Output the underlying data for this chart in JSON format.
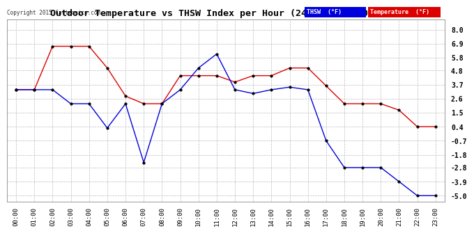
{
  "title": "Outdoor Temperature vs THSW Index per Hour (24 Hours)  20150109",
  "copyright": "Copyright 2015 Cartronics.com",
  "background_color": "#ffffff",
  "plot_bg_color": "#ffffff",
  "grid_color": "#bbbbbb",
  "x_labels": [
    "00:00",
    "01:00",
    "02:00",
    "03:00",
    "04:00",
    "05:00",
    "06:00",
    "07:00",
    "08:00",
    "09:00",
    "10:00",
    "11:00",
    "12:00",
    "13:00",
    "14:00",
    "15:00",
    "16:00",
    "17:00",
    "18:00",
    "19:00",
    "20:00",
    "21:00",
    "22:00",
    "23:00"
  ],
  "y_ticks": [
    8.0,
    6.9,
    5.8,
    4.8,
    3.7,
    2.6,
    1.5,
    0.4,
    -0.7,
    -1.8,
    -2.8,
    -3.9,
    -5.0
  ],
  "thsw_color": "#0000dd",
  "temp_color": "#dd0000",
  "thsw_values": [
    3.3,
    3.3,
    3.3,
    2.2,
    2.2,
    0.3,
    2.2,
    -2.4,
    2.2,
    3.3,
    5.0,
    6.1,
    3.3,
    3.0,
    3.3,
    3.5,
    3.3,
    -0.7,
    -2.8,
    -2.8,
    -2.8,
    -3.9,
    -5.0,
    -5.0
  ],
  "temp_values": [
    3.3,
    3.3,
    6.7,
    6.7,
    6.7,
    5.0,
    2.8,
    2.2,
    2.2,
    4.4,
    4.4,
    4.4,
    3.9,
    4.4,
    4.4,
    5.0,
    5.0,
    3.6,
    2.2,
    2.2,
    2.2,
    1.7,
    0.4,
    0.4
  ],
  "ylim": [
    -5.5,
    8.8
  ],
  "legend_thsw_label": "THSW  (°F)",
  "legend_temp_label": "Temperature  (°F)"
}
